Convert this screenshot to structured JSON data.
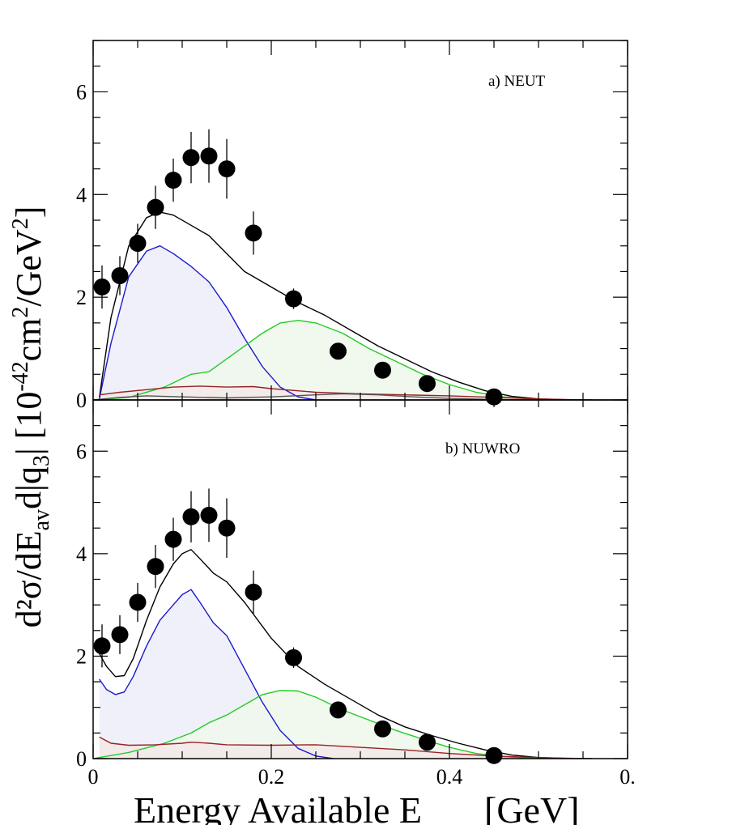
{
  "figure": {
    "ylabel_main": "d²σ/dE",
    "ylabel_sub_av": "av",
    "ylabel_mid": "d|q",
    "ylabel_sub_3": "3",
    "ylabel_tail": "| [10",
    "ylabel_exp": "-42",
    "ylabel_unit1": "cm",
    "ylabel_sq": "2",
    "ylabel_unit2": "/GeV",
    "ylabel_close": "]",
    "xlabel": "Energy Available E",
    "xlabel_unit": "[GeV]",
    "colors": {
      "total": "#000000",
      "qe": "#1a1acc",
      "delta": "#22cc22",
      "mec": "#992222",
      "other": "#555555",
      "qe_fill": "#ededfa",
      "delta_fill": "#eef8ec",
      "overlap_fill": "#dcecec"
    }
  },
  "chart_data": [
    {
      "type": "line",
      "panel": "top",
      "title": "a) NEUT",
      "xlim": [
        0,
        0.6
      ],
      "ylim": [
        0,
        7
      ],
      "yticks": [
        "0",
        "2",
        "4",
        "6"
      ],
      "xticks": [],
      "points": {
        "name": "data",
        "x": [
          0.01,
          0.03,
          0.05,
          0.07,
          0.09,
          0.11,
          0.13,
          0.15,
          0.18,
          0.225,
          0.275,
          0.325,
          0.375,
          0.45
        ],
        "y": [
          2.2,
          2.42,
          3.05,
          3.75,
          4.28,
          4.72,
          4.75,
          4.5,
          3.25,
          1.97,
          0.95,
          0.58,
          0.32,
          0.06
        ],
        "err": [
          0.42,
          0.38,
          0.38,
          0.42,
          0.42,
          0.5,
          0.52,
          0.58,
          0.42,
          0.2,
          0.12,
          0.08,
          0.06,
          0.05
        ]
      },
      "series": [
        {
          "name": "total",
          "x": [
            0.007,
            0.02,
            0.04,
            0.06,
            0.075,
            0.09,
            0.11,
            0.13,
            0.15,
            0.17,
            0.2,
            0.23,
            0.26,
            0.29,
            0.32,
            0.35,
            0.38,
            0.41,
            0.44,
            0.47,
            0.5,
            0.53,
            0.56
          ],
          "y": [
            0.05,
            1.6,
            3.0,
            3.55,
            3.66,
            3.6,
            3.4,
            3.2,
            2.85,
            2.5,
            2.2,
            1.9,
            1.65,
            1.35,
            1.05,
            0.8,
            0.55,
            0.35,
            0.18,
            0.07,
            0.02,
            0.005,
            0.0
          ]
        },
        {
          "name": "QE",
          "x": [
            0.007,
            0.02,
            0.04,
            0.06,
            0.075,
            0.09,
            0.11,
            0.13,
            0.15,
            0.17,
            0.19,
            0.21,
            0.23,
            0.25
          ],
          "y": [
            0.02,
            1.1,
            2.4,
            2.9,
            3.0,
            2.85,
            2.6,
            2.3,
            1.8,
            1.2,
            0.65,
            0.25,
            0.06,
            0.0
          ]
        },
        {
          "name": "Delta",
          "x": [
            0.0,
            0.04,
            0.08,
            0.11,
            0.13,
            0.15,
            0.17,
            0.19,
            0.21,
            0.23,
            0.25,
            0.28,
            0.31,
            0.34,
            0.37,
            0.4,
            0.43,
            0.46,
            0.49,
            0.52
          ],
          "y": [
            0.0,
            0.05,
            0.25,
            0.5,
            0.55,
            0.8,
            1.05,
            1.3,
            1.5,
            1.55,
            1.5,
            1.3,
            1.0,
            0.75,
            0.5,
            0.3,
            0.15,
            0.06,
            0.02,
            0.0
          ]
        },
        {
          "name": "MEC",
          "x": [
            0.007,
            0.03,
            0.06,
            0.09,
            0.12,
            0.15,
            0.18,
            0.2,
            0.25,
            0.3,
            0.35,
            0.4,
            0.45,
            0.5,
            0.55
          ],
          "y": [
            0.1,
            0.15,
            0.2,
            0.25,
            0.27,
            0.25,
            0.26,
            0.22,
            0.15,
            0.12,
            0.1,
            0.08,
            0.05,
            0.02,
            0.0
          ]
        },
        {
          "name": "other",
          "x": [
            0.0,
            0.03,
            0.06,
            0.1,
            0.15,
            0.2,
            0.25,
            0.28,
            0.32,
            0.36,
            0.4,
            0.45,
            0.5
          ],
          "y": [
            0.0,
            0.05,
            0.08,
            0.06,
            0.04,
            0.06,
            0.1,
            0.12,
            0.1,
            0.06,
            0.03,
            0.01,
            0.0
          ]
        }
      ]
    },
    {
      "type": "line",
      "panel": "bottom",
      "title": "b) NUWRO",
      "xlim": [
        0,
        0.6
      ],
      "ylim": [
        0,
        7
      ],
      "yticks": [
        "0",
        "2",
        "4",
        "6"
      ],
      "xticks": [
        "0",
        "0.2",
        "0.4",
        "0."
      ],
      "points": {
        "name": "data",
        "x": [
          0.01,
          0.03,
          0.05,
          0.07,
          0.09,
          0.11,
          0.13,
          0.15,
          0.18,
          0.225,
          0.275,
          0.325,
          0.375,
          0.45
        ],
        "y": [
          2.2,
          2.42,
          3.05,
          3.75,
          4.28,
          4.72,
          4.75,
          4.5,
          3.25,
          1.97,
          0.95,
          0.58,
          0.32,
          0.06
        ],
        "err": [
          0.42,
          0.38,
          0.38,
          0.42,
          0.42,
          0.5,
          0.52,
          0.58,
          0.42,
          0.2,
          0.12,
          0.08,
          0.06,
          0.05
        ]
      },
      "series": [
        {
          "name": "total",
          "x": [
            0.007,
            0.015,
            0.025,
            0.035,
            0.045,
            0.06,
            0.075,
            0.09,
            0.1,
            0.11,
            0.12,
            0.135,
            0.15,
            0.17,
            0.2,
            0.23,
            0.26,
            0.29,
            0.32,
            0.35,
            0.38,
            0.41,
            0.44,
            0.47,
            0.5,
            0.53,
            0.56
          ],
          "y": [
            2.05,
            1.8,
            1.6,
            1.62,
            1.95,
            2.7,
            3.35,
            3.8,
            4.0,
            4.08,
            3.9,
            3.62,
            3.45,
            3.05,
            2.35,
            1.8,
            1.45,
            1.15,
            0.85,
            0.62,
            0.45,
            0.3,
            0.17,
            0.07,
            0.02,
            0.005,
            0.0
          ]
        },
        {
          "name": "QE",
          "x": [
            0.007,
            0.015,
            0.025,
            0.035,
            0.045,
            0.06,
            0.075,
            0.09,
            0.1,
            0.11,
            0.12,
            0.135,
            0.15,
            0.17,
            0.19,
            0.21,
            0.23,
            0.25,
            0.27
          ],
          "y": [
            1.55,
            1.35,
            1.25,
            1.3,
            1.6,
            2.2,
            2.7,
            3.0,
            3.2,
            3.3,
            3.05,
            2.65,
            2.4,
            1.75,
            1.1,
            0.55,
            0.2,
            0.05,
            0.0
          ]
        },
        {
          "name": "Delta",
          "x": [
            0.0,
            0.04,
            0.08,
            0.11,
            0.13,
            0.15,
            0.17,
            0.19,
            0.21,
            0.23,
            0.25,
            0.28,
            0.31,
            0.34,
            0.37,
            0.4,
            0.43,
            0.46,
            0.49,
            0.52
          ],
          "y": [
            0.0,
            0.12,
            0.3,
            0.5,
            0.7,
            0.85,
            1.05,
            1.25,
            1.33,
            1.32,
            1.2,
            0.95,
            0.75,
            0.55,
            0.38,
            0.22,
            0.1,
            0.04,
            0.01,
            0.0
          ]
        },
        {
          "name": "MEC",
          "x": [
            0.007,
            0.02,
            0.04,
            0.07,
            0.1,
            0.11,
            0.13,
            0.15,
            0.2,
            0.25,
            0.3,
            0.35,
            0.4,
            0.45,
            0.5,
            0.55
          ],
          "y": [
            0.42,
            0.3,
            0.26,
            0.27,
            0.3,
            0.32,
            0.3,
            0.27,
            0.26,
            0.27,
            0.22,
            0.17,
            0.1,
            0.05,
            0.02,
            0.0
          ]
        }
      ]
    }
  ]
}
